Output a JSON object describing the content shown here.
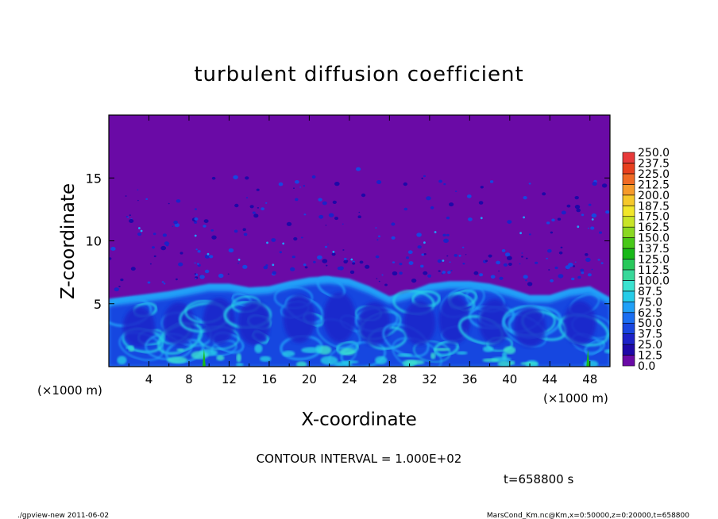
{
  "chart_data": {
    "type": "heatmap",
    "title": "turbulent diffusion coefficient",
    "xlabel": "X-coordinate",
    "ylabel": "Z-coordinate",
    "x_unit_left": "(×1000 m)",
    "x_unit_right": "(×1000 m)",
    "xlim": [
      0,
      50
    ],
    "ylim": [
      0,
      20
    ],
    "xticks": [
      4,
      8,
      12,
      16,
      20,
      24,
      28,
      32,
      36,
      40,
      44,
      48
    ],
    "yticks": [
      5,
      10,
      15
    ],
    "background_value": 0,
    "mixed_layer_top_km": [
      [
        0,
        5.4
      ],
      [
        2,
        5.6
      ],
      [
        4,
        5.8
      ],
      [
        6,
        6.0
      ],
      [
        8,
        6.3
      ],
      [
        10,
        6.6
      ],
      [
        12,
        6.6
      ],
      [
        14,
        6.3
      ],
      [
        16,
        6.4
      ],
      [
        18,
        6.8
      ],
      [
        20,
        7.1
      ],
      [
        22,
        7.2
      ],
      [
        24,
        7.0
      ],
      [
        26,
        6.4
      ],
      [
        28,
        5.6
      ],
      [
        30,
        6.0
      ],
      [
        32,
        6.6
      ],
      [
        34,
        6.8
      ],
      [
        36,
        6.8
      ],
      [
        38,
        6.6
      ],
      [
        40,
        6.2
      ],
      [
        42,
        5.7
      ],
      [
        44,
        5.7
      ],
      [
        46,
        6.2
      ],
      [
        48,
        6.4
      ],
      [
        50,
        5.5
      ]
    ],
    "colorbar": {
      "levels": [
        "0.0",
        "12.5",
        "25.0",
        "37.5",
        "50.0",
        "62.5",
        "75.0",
        "87.5",
        "100.0",
        "112.5",
        "125.0",
        "137.5",
        "150.0",
        "162.5",
        "175.0",
        "187.5",
        "200.0",
        "212.5",
        "225.0",
        "237.5",
        "250.0"
      ],
      "colors": [
        "#6a0aa6",
        "#1e08a8",
        "#1c22c8",
        "#1846e0",
        "#1a6ef2",
        "#20a0f8",
        "#26cce8",
        "#3ae2d0",
        "#38d89a",
        "#28c85a",
        "#18b818",
        "#48c818",
        "#8ad822",
        "#c8e428",
        "#f2e62a",
        "#f6c82a",
        "#f69a2a",
        "#f06a24",
        "#e8401e",
        "#e83a3a",
        "#f08a8a"
      ]
    },
    "contour_interval": "CONTOUR INTERVAL = 1.000E+02",
    "time_label": "t=658800 s"
  },
  "footer": {
    "left": "./gpview-new   2011-06-02",
    "right": "MarsCond_Km.nc@Km,x=0:50000,z=0:20000,t=658800"
  }
}
